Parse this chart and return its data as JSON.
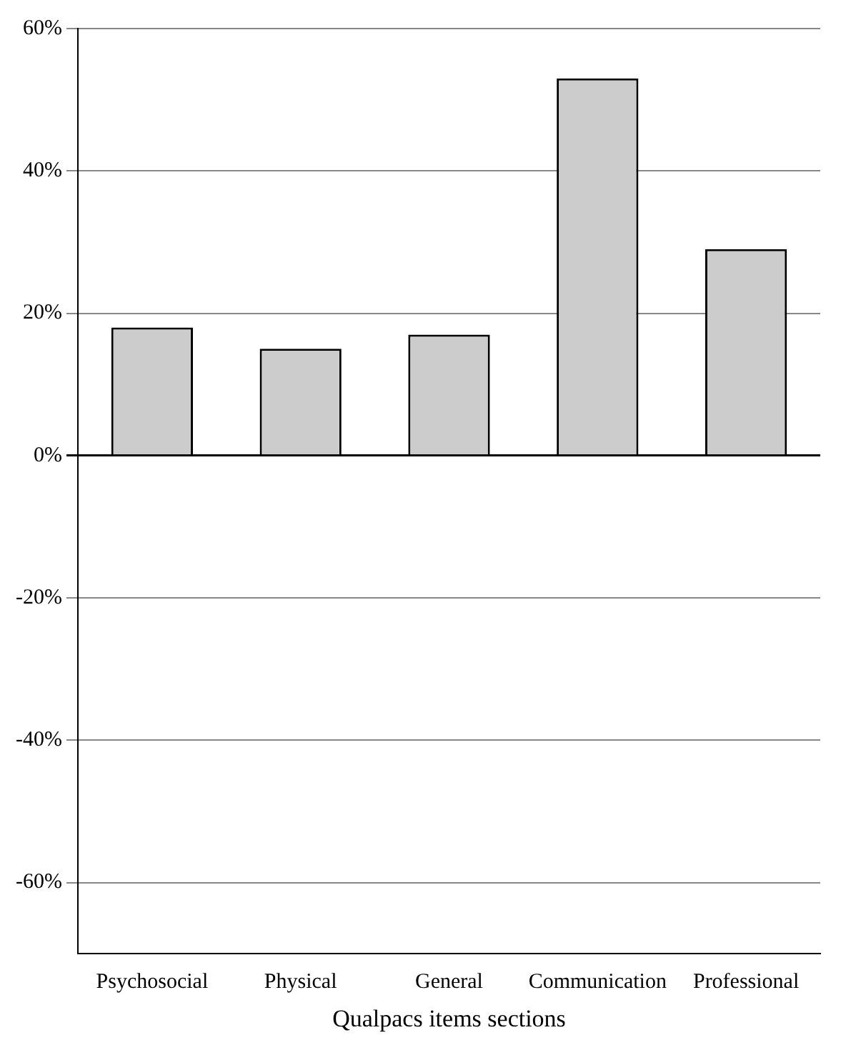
{
  "chart_data": {
    "type": "bar",
    "xlabel": "Qualpacs items sections",
    "categories": [
      "Psychosocial",
      "Physical",
      "General",
      "Communication",
      "Professional"
    ],
    "values": [
      18,
      15,
      17,
      53,
      29
    ],
    "color": "#cccccc",
    "ylim": [
      -70,
      60
    ],
    "yticks": [
      {
        "value": 60,
        "label": "60%"
      },
      {
        "value": 40,
        "label": "40%"
      },
      {
        "value": 20,
        "label": "20%"
      },
      {
        "value": 0,
        "label": "0%"
      },
      {
        "value": -20,
        "label": "-20%"
      },
      {
        "value": -40,
        "label": "-40%"
      },
      {
        "value": -60,
        "label": "-60%"
      }
    ],
    "grid": "y",
    "legend": false
  }
}
